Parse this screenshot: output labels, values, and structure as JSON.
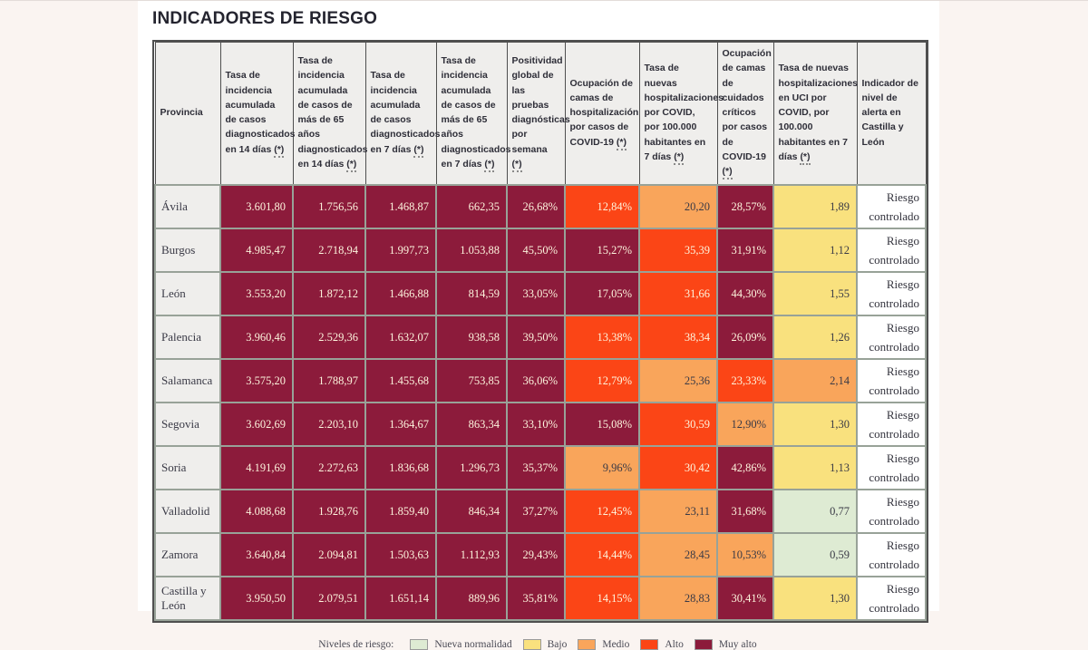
{
  "title": "INDICADORES DE RIESGO",
  "risk_colors": {
    "nueva_normalidad": "#deebd3",
    "bajo": "#f9e17e",
    "medio": "#f9a55b",
    "alto": "#fb4516",
    "muy_alto": "#8c1b3b"
  },
  "legend": {
    "title": "Niveles de riesgo:",
    "items": [
      {
        "label": "Nueva normalidad",
        "level": "nueva_normalidad"
      },
      {
        "label": "Bajo",
        "level": "bajo"
      },
      {
        "label": "Medio",
        "level": "medio"
      },
      {
        "label": "Alto",
        "level": "alto"
      },
      {
        "label": "Muy alto",
        "level": "muy_alto"
      }
    ]
  },
  "chart_data": {
    "type": "table",
    "title": "INDICADORES DE RIESGO",
    "columns": [
      {
        "label": "Provincia",
        "mark": ""
      },
      {
        "label": "Tasa de incidencia acumulada de casos diagnosticados en 14 días",
        "mark": "(*)"
      },
      {
        "label": "Tasa de incidencia acumulada de casos de más de 65 años diagnosticados en 14 días",
        "mark": "(*)"
      },
      {
        "label": "Tasa de incidencia acumulada de casos diagnosticados en 7 días",
        "mark": "(*)"
      },
      {
        "label": "Tasa de incidencia acumulada de casos de más de 65 años diagnosticados en 7 días",
        "mark": "(*)"
      },
      {
        "label": "Positividad global de las pruebas diagnósticas por semana",
        "mark": "(*)"
      },
      {
        "label": "Ocupación de camas de hospitalización por casos de COVID-19",
        "mark": "(*)"
      },
      {
        "label": "Tasa de nuevas hospitalizaciones por COVID, por 100.000 habitantes en 7 días",
        "mark": "(*)"
      },
      {
        "label": "Ocupación de camas de cuidados críticos por casos de COVID-19",
        "mark": "(*)"
      },
      {
        "label": "Tasa de nuevas hospitalizaciones en UCI por COVID, por 100.000 habitantes en 7 días",
        "mark": "(*)"
      },
      {
        "label": "Indicador de nivel de alerta en Castilla y León",
        "mark": ""
      }
    ],
    "rows": [
      {
        "provincia": "Ávila",
        "cells": [
          {
            "v": "3.601,80",
            "level": "muy_alto"
          },
          {
            "v": "1.756,56",
            "level": "muy_alto"
          },
          {
            "v": "1.468,87",
            "level": "muy_alto"
          },
          {
            "v": "662,35",
            "level": "muy_alto"
          },
          {
            "v": "26,68%",
            "level": "muy_alto"
          },
          {
            "v": "12,84%",
            "level": "alto"
          },
          {
            "v": "20,20",
            "level": "medio"
          },
          {
            "v": "28,57%",
            "level": "muy_alto"
          },
          {
            "v": "1,89",
            "level": "bajo"
          }
        ],
        "alerta": "Riesgo controlado"
      },
      {
        "provincia": "Burgos",
        "cells": [
          {
            "v": "4.985,47",
            "level": "muy_alto"
          },
          {
            "v": "2.718,94",
            "level": "muy_alto"
          },
          {
            "v": "1.997,73",
            "level": "muy_alto"
          },
          {
            "v": "1.053,88",
            "level": "muy_alto"
          },
          {
            "v": "45,50%",
            "level": "muy_alto"
          },
          {
            "v": "15,27%",
            "level": "muy_alto"
          },
          {
            "v": "35,39",
            "level": "alto"
          },
          {
            "v": "31,91%",
            "level": "muy_alto"
          },
          {
            "v": "1,12",
            "level": "bajo"
          }
        ],
        "alerta": "Riesgo controlado"
      },
      {
        "provincia": "León",
        "cells": [
          {
            "v": "3.553,20",
            "level": "muy_alto"
          },
          {
            "v": "1.872,12",
            "level": "muy_alto"
          },
          {
            "v": "1.466,88",
            "level": "muy_alto"
          },
          {
            "v": "814,59",
            "level": "muy_alto"
          },
          {
            "v": "33,05%",
            "level": "muy_alto"
          },
          {
            "v": "17,05%",
            "level": "muy_alto"
          },
          {
            "v": "31,66",
            "level": "alto"
          },
          {
            "v": "44,30%",
            "level": "muy_alto"
          },
          {
            "v": "1,55",
            "level": "bajo"
          }
        ],
        "alerta": "Riesgo controlado"
      },
      {
        "provincia": "Palencia",
        "cells": [
          {
            "v": "3.960,46",
            "level": "muy_alto"
          },
          {
            "v": "2.529,36",
            "level": "muy_alto"
          },
          {
            "v": "1.632,07",
            "level": "muy_alto"
          },
          {
            "v": "938,58",
            "level": "muy_alto"
          },
          {
            "v": "39,50%",
            "level": "muy_alto"
          },
          {
            "v": "13,38%",
            "level": "alto"
          },
          {
            "v": "38,34",
            "level": "alto"
          },
          {
            "v": "26,09%",
            "level": "muy_alto"
          },
          {
            "v": "1,26",
            "level": "bajo"
          }
        ],
        "alerta": "Riesgo controlado"
      },
      {
        "provincia": "Salamanca",
        "cells": [
          {
            "v": "3.575,20",
            "level": "muy_alto"
          },
          {
            "v": "1.788,97",
            "level": "muy_alto"
          },
          {
            "v": "1.455,68",
            "level": "muy_alto"
          },
          {
            "v": "753,85",
            "level": "muy_alto"
          },
          {
            "v": "36,06%",
            "level": "muy_alto"
          },
          {
            "v": "12,79%",
            "level": "alto"
          },
          {
            "v": "25,36",
            "level": "medio"
          },
          {
            "v": "23,33%",
            "level": "alto"
          },
          {
            "v": "2,14",
            "level": "medio"
          }
        ],
        "alerta": "Riesgo controlado"
      },
      {
        "provincia": "Segovia",
        "cells": [
          {
            "v": "3.602,69",
            "level": "muy_alto"
          },
          {
            "v": "2.203,10",
            "level": "muy_alto"
          },
          {
            "v": "1.364,67",
            "level": "muy_alto"
          },
          {
            "v": "863,34",
            "level": "muy_alto"
          },
          {
            "v": "33,10%",
            "level": "muy_alto"
          },
          {
            "v": "15,08%",
            "level": "muy_alto"
          },
          {
            "v": "30,59",
            "level": "alto"
          },
          {
            "v": "12,90%",
            "level": "medio"
          },
          {
            "v": "1,30",
            "level": "bajo"
          }
        ],
        "alerta": "Riesgo controlado"
      },
      {
        "provincia": "Soria",
        "cells": [
          {
            "v": "4.191,69",
            "level": "muy_alto"
          },
          {
            "v": "2.272,63",
            "level": "muy_alto"
          },
          {
            "v": "1.836,68",
            "level": "muy_alto"
          },
          {
            "v": "1.296,73",
            "level": "muy_alto"
          },
          {
            "v": "35,37%",
            "level": "muy_alto"
          },
          {
            "v": "9,96%",
            "level": "medio"
          },
          {
            "v": "30,42",
            "level": "alto"
          },
          {
            "v": "42,86%",
            "level": "muy_alto"
          },
          {
            "v": "1,13",
            "level": "bajo"
          }
        ],
        "alerta": "Riesgo controlado"
      },
      {
        "provincia": "Valladolid",
        "cells": [
          {
            "v": "4.088,68",
            "level": "muy_alto"
          },
          {
            "v": "1.928,76",
            "level": "muy_alto"
          },
          {
            "v": "1.859,40",
            "level": "muy_alto"
          },
          {
            "v": "846,34",
            "level": "muy_alto"
          },
          {
            "v": "37,27%",
            "level": "muy_alto"
          },
          {
            "v": "12,45%",
            "level": "alto"
          },
          {
            "v": "23,11",
            "level": "medio"
          },
          {
            "v": "31,68%",
            "level": "muy_alto"
          },
          {
            "v": "0,77",
            "level": "nueva_normalidad"
          }
        ],
        "alerta": "Riesgo controlado"
      },
      {
        "provincia": "Zamora",
        "cells": [
          {
            "v": "3.640,84",
            "level": "muy_alto"
          },
          {
            "v": "2.094,81",
            "level": "muy_alto"
          },
          {
            "v": "1.503,63",
            "level": "muy_alto"
          },
          {
            "v": "1.112,93",
            "level": "muy_alto"
          },
          {
            "v": "29,43%",
            "level": "muy_alto"
          },
          {
            "v": "14,44%",
            "level": "alto"
          },
          {
            "v": "28,45",
            "level": "medio"
          },
          {
            "v": "10,53%",
            "level": "medio"
          },
          {
            "v": "0,59",
            "level": "nueva_normalidad"
          }
        ],
        "alerta": "Riesgo controlado"
      },
      {
        "provincia": "Castilla y León",
        "cells": [
          {
            "v": "3.950,50",
            "level": "muy_alto"
          },
          {
            "v": "2.079,51",
            "level": "muy_alto"
          },
          {
            "v": "1.651,14",
            "level": "muy_alto"
          },
          {
            "v": "889,96",
            "level": "muy_alto"
          },
          {
            "v": "35,81%",
            "level": "muy_alto"
          },
          {
            "v": "14,15%",
            "level": "alto"
          },
          {
            "v": "28,83",
            "level": "medio"
          },
          {
            "v": "30,41%",
            "level": "muy_alto"
          },
          {
            "v": "1,30",
            "level": "bajo"
          }
        ],
        "alerta": "Riesgo controlado"
      }
    ]
  }
}
